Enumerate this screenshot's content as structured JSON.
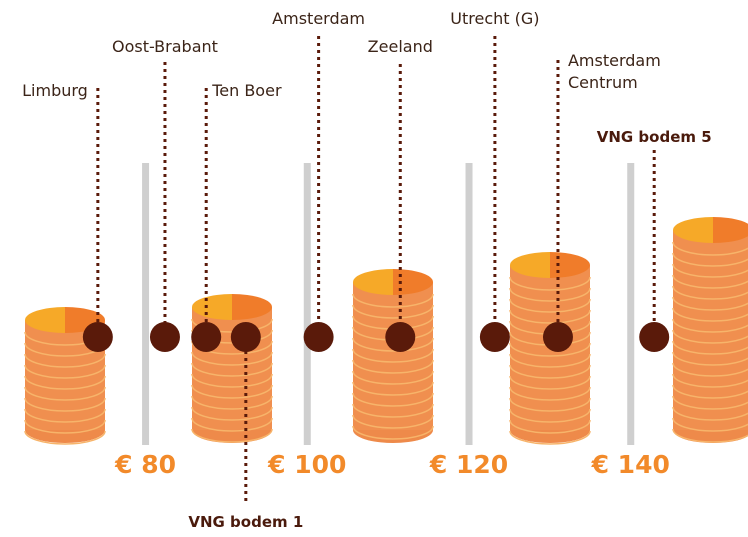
{
  "chart_data": {
    "type": "dot",
    "categories": [
      "Limburg",
      "Oost-Brabant",
      "Ten Boer",
      "VNG bodem 1",
      "Amsterdam",
      "Zeeland",
      "Utrecht (G)",
      "Amsterdam Centrum",
      "VNG bodem 5"
    ],
    "values": [
      74.1,
      82.4,
      87.5,
      92.4,
      101.4,
      111.5,
      123.2,
      131.0,
      142.9
    ],
    "color": "#5a1a0a",
    "xlim": [
      62,
      154.5
    ],
    "xticks": [
      {
        "value": 80,
        "label": "€ 80"
      },
      {
        "value": 100,
        "label": "€ 100"
      },
      {
        "value": 120,
        "label": "€ 120"
      },
      {
        "value": 140,
        "label": "€ 140"
      }
    ]
  }
}
